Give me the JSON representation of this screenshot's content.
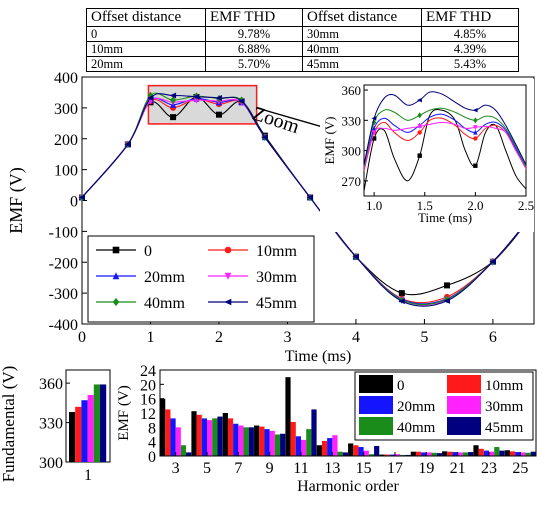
{
  "table": {
    "headers": [
      "Offset distance",
      "EMF THD",
      "Offset distance",
      "EMF THD"
    ],
    "rows": [
      [
        "0",
        "9.78%",
        "30mm",
        "4.85%"
      ],
      [
        "10mm",
        "6.88%",
        "40mm",
        "4.39%"
      ],
      [
        "20mm",
        "5.70%",
        "45mm",
        "5.43%"
      ]
    ]
  },
  "zoom_label": "Zoom",
  "colors": {
    "0": "#000000",
    "10mm": "#ff1a1a",
    "20mm": "#1414ff",
    "30mm": "#ff22ff",
    "40mm": "#1a8c1a",
    "45mm": "#000080"
  },
  "chart_data": [
    {
      "type": "line",
      "xlabel": "Time (ms)",
      "ylabel": "EMF (V)",
      "xlim": [
        0,
        6.6
      ],
      "ylim": [
        -400,
        400
      ],
      "xticks": [
        "0",
        "1",
        "2",
        "3",
        "4",
        "5",
        "6"
      ],
      "yticks": [
        "400",
        "300",
        "200",
        "100",
        "0",
        "-100",
        "-200",
        "-300",
        "-400"
      ],
      "legend_position": "bottom-left",
      "series": [
        {
          "name": "0",
          "marker": "square",
          "x": [
            0,
            0.67,
            1.0,
            1.33,
            1.67,
            2.0,
            2.33,
            2.67,
            3.33,
            4.0,
            4.67,
            5.33,
            6.0,
            6.6
          ],
          "y": [
            10,
            182,
            318,
            270,
            335,
            278,
            320,
            210,
            10,
            -182,
            -300,
            -275,
            -198,
            -40
          ]
        },
        {
          "name": "10mm",
          "marker": "circle",
          "x": [
            0,
            0.67,
            1.0,
            1.33,
            1.67,
            2.0,
            2.33,
            2.67,
            3.33,
            4.0,
            4.67,
            5.33,
            6.0,
            6.6
          ],
          "y": [
            10,
            182,
            322,
            300,
            328,
            312,
            318,
            205,
            10,
            -182,
            -318,
            -312,
            -198,
            -40
          ]
        },
        {
          "name": "20mm",
          "marker": "triangle-up",
          "x": [
            0,
            0.67,
            1.0,
            1.33,
            1.67,
            2.0,
            2.33,
            2.67,
            3.33,
            4.0,
            4.67,
            5.33,
            6.0,
            6.6
          ],
          "y": [
            10,
            182,
            325,
            310,
            330,
            318,
            318,
            205,
            10,
            -182,
            -320,
            -318,
            -198,
            -40
          ]
        },
        {
          "name": "30mm",
          "marker": "triangle-down",
          "x": [
            0,
            0.67,
            1.0,
            1.33,
            1.67,
            2.0,
            2.33,
            2.67,
            3.33,
            4.0,
            4.67,
            5.33,
            6.0,
            6.6
          ],
          "y": [
            10,
            182,
            322,
            318,
            325,
            322,
            318,
            205,
            10,
            -182,
            -322,
            -322,
            -198,
            -40
          ]
        },
        {
          "name": "40mm",
          "marker": "diamond",
          "x": [
            0,
            0.67,
            1.0,
            1.33,
            1.67,
            2.0,
            2.33,
            2.67,
            3.33,
            4.0,
            4.67,
            5.33,
            6.0,
            6.6
          ],
          "y": [
            10,
            182,
            340,
            325,
            338,
            330,
            325,
            205,
            10,
            -182,
            -322,
            -320,
            -198,
            -40
          ]
        },
        {
          "name": "45mm",
          "marker": "triangle-left",
          "x": [
            0,
            0.67,
            1.0,
            1.33,
            1.67,
            2.0,
            2.33,
            2.67,
            3.33,
            4.0,
            4.67,
            5.33,
            6.0,
            6.6
          ],
          "y": [
            10,
            182,
            332,
            340,
            336,
            332,
            322,
            205,
            10,
            -182,
            -326,
            -325,
            -198,
            -40
          ]
        }
      ]
    },
    {
      "type": "line",
      "xlabel": "Time (ms)",
      "ylabel": "EMF (V)",
      "xlim": [
        0.9,
        2.5
      ],
      "ylim": [
        255,
        365
      ],
      "xticks": [
        "1.0",
        "1.5",
        "2.0",
        "2.5"
      ],
      "yticks": [
        "360",
        "330",
        "300",
        "270"
      ],
      "series": [
        {
          "name": "0",
          "x": [
            0.9,
            1.0,
            1.1,
            1.2,
            1.33,
            1.45,
            1.55,
            1.67,
            1.8,
            1.9,
            2.0,
            2.1,
            2.2,
            2.3,
            2.4,
            2.5
          ],
          "y": [
            260,
            312,
            320,
            292,
            270,
            295,
            335,
            340,
            330,
            300,
            285,
            318,
            325,
            300,
            275,
            262
          ]
        },
        {
          "name": "10mm",
          "x": [
            0.9,
            1.0,
            1.1,
            1.2,
            1.33,
            1.45,
            1.55,
            1.67,
            1.8,
            1.9,
            2.0,
            2.1,
            2.2,
            2.3,
            2.4,
            2.5
          ],
          "y": [
            280,
            318,
            328,
            318,
            310,
            318,
            330,
            332,
            325,
            316,
            312,
            322,
            325,
            318,
            300,
            282
          ]
        },
        {
          "name": "20mm",
          "x": [
            0.9,
            1.0,
            1.1,
            1.2,
            1.33,
            1.45,
            1.55,
            1.67,
            1.8,
            1.9,
            2.0,
            2.1,
            2.2,
            2.3,
            2.4,
            2.5
          ],
          "y": [
            282,
            322,
            332,
            325,
            318,
            325,
            333,
            336,
            330,
            322,
            318,
            326,
            328,
            320,
            302,
            284
          ]
        },
        {
          "name": "30mm",
          "x": [
            0.9,
            1.0,
            1.1,
            1.2,
            1.33,
            1.45,
            1.55,
            1.67,
            1.8,
            1.9,
            2.0,
            2.1,
            2.2,
            2.3,
            2.4,
            2.5
          ],
          "y": [
            282,
            318,
            322,
            320,
            322,
            324,
            326,
            328,
            326,
            322,
            323,
            324,
            322,
            318,
            300,
            282
          ]
        },
        {
          "name": "40mm",
          "x": [
            0.9,
            1.0,
            1.1,
            1.2,
            1.33,
            1.45,
            1.55,
            1.67,
            1.8,
            1.9,
            2.0,
            2.1,
            2.2,
            2.3,
            2.4,
            2.5
          ],
          "y": [
            284,
            328,
            340,
            338,
            330,
            335,
            340,
            342,
            338,
            333,
            330,
            334,
            332,
            322,
            304,
            284
          ]
        },
        {
          "name": "45mm",
          "x": [
            0.9,
            1.0,
            1.1,
            1.2,
            1.33,
            1.45,
            1.55,
            1.67,
            1.8,
            1.9,
            2.0,
            2.1,
            2.2,
            2.3,
            2.4,
            2.5
          ],
          "y": [
            286,
            332,
            352,
            355,
            345,
            350,
            358,
            356,
            348,
            342,
            340,
            345,
            340,
            325,
            306,
            286
          ]
        }
      ]
    },
    {
      "type": "bar",
      "ylabel": "Fundamental (V)",
      "categories": [
        "1"
      ],
      "ylim": [
        300,
        370
      ],
      "yticks": [
        "360",
        "330",
        "300"
      ],
      "series": [
        {
          "name": "0",
          "values": [
            338
          ]
        },
        {
          "name": "10mm",
          "values": [
            342
          ]
        },
        {
          "name": "20mm",
          "values": [
            347
          ]
        },
        {
          "name": "30mm",
          "values": [
            351
          ]
        },
        {
          "name": "40mm",
          "values": [
            359
          ]
        },
        {
          "name": "45mm",
          "values": [
            359
          ]
        }
      ]
    },
    {
      "type": "bar",
      "xlabel": "Harmonic order",
      "ylabel": "EMF (V)",
      "categories": [
        "3",
        "5",
        "7",
        "9",
        "11",
        "13",
        "15",
        "17",
        "19",
        "21",
        "23",
        "25"
      ],
      "ylim": [
        0,
        24
      ],
      "yticks": [
        "24",
        "20",
        "16",
        "12",
        "8",
        "4",
        "0"
      ],
      "legend_position": "top-right",
      "series": [
        {
          "name": "0",
          "values": [
            16,
            12.5,
            12,
            8.5,
            22,
            3,
            3.5,
            0.4,
            1.2,
            1.3,
            3,
            1.6
          ]
        },
        {
          "name": "10mm",
          "values": [
            13,
            11.5,
            10.5,
            8.2,
            9.5,
            4.2,
            3,
            0.4,
            1.2,
            1.2,
            2,
            1.3
          ]
        },
        {
          "name": "20mm",
          "values": [
            10.5,
            10.5,
            9,
            7.5,
            5.5,
            5,
            2.5,
            0.4,
            1,
            1.1,
            1.5,
            1.1
          ]
        },
        {
          "name": "30mm",
          "values": [
            8,
            10,
            8.5,
            7,
            4.5,
            5.8,
            1.5,
            0.5,
            1,
            1,
            1.2,
            1
          ]
        },
        {
          "name": "40mm",
          "values": [
            3,
            10.5,
            8,
            6,
            7.5,
            1.2,
            0.5,
            0.3,
            0.9,
            1,
            2.5,
            0.9
          ]
        },
        {
          "name": "45mm",
          "values": [
            1,
            11,
            8,
            6.2,
            13,
            1,
            2.8,
            0.3,
            0.8,
            1.1,
            1.5,
            1.2
          ]
        }
      ]
    }
  ]
}
